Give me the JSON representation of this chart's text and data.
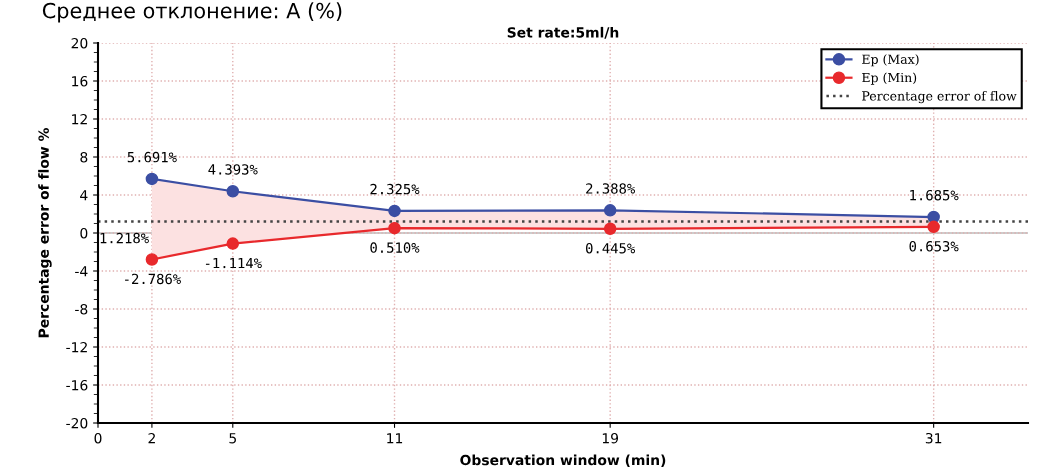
{
  "chart_data": {
    "type": "line",
    "title": "Set rate:5ml/h",
    "annotations": [
      "Среднее отклонение: A (%)",
      {
        "text": "1.218%",
        "x": 2,
        "y": 1.218
      }
    ],
    "xlabel": "Observation window (min)",
    "ylabel": "Percentage error of flow %",
    "x": [
      2,
      5,
      11,
      19,
      31
    ],
    "series": [
      {
        "name": "Ep (Max)",
        "color": "#3b4ea3",
        "values": [
          5.691,
          4.393,
          2.325,
          2.388,
          1.685
        ],
        "value_labels": [
          "5.691%",
          "4.393%",
          "2.325%",
          "2.388%",
          "1.685%"
        ]
      },
      {
        "name": "Ep (Min)",
        "color": "#e8292c",
        "values": [
          -2.786,
          -1.114,
          0.51,
          0.445,
          0.653
        ],
        "value_labels": [
          "-2.786%",
          "-1.114%",
          "0.510%",
          "0.445%",
          "0.653%"
        ],
        "lower": [
          -2.786,
          -1.114,
          0.51,
          0.445,
          0.653
        ],
        "upper": [
          5.691,
          4.393,
          2.325,
          2.388,
          1.685
        ]
      }
    ],
    "ref_lines": [
      {
        "axis": "y",
        "value": 1.218,
        "label": "Percentage error of flow",
        "color": "#444444",
        "line_style": "dotted"
      }
    ],
    "xlim": [
      0,
      34.5
    ],
    "xticks": [
      0,
      2,
      5,
      11,
      19,
      31
    ],
    "ylim": [
      -20,
      20
    ],
    "yticks": [
      -20,
      -16,
      -12,
      -8,
      -4,
      0,
      4,
      8,
      12,
      16,
      20
    ],
    "grid": true,
    "legend": "top right",
    "marker": "circle",
    "line_style": "solid"
  }
}
